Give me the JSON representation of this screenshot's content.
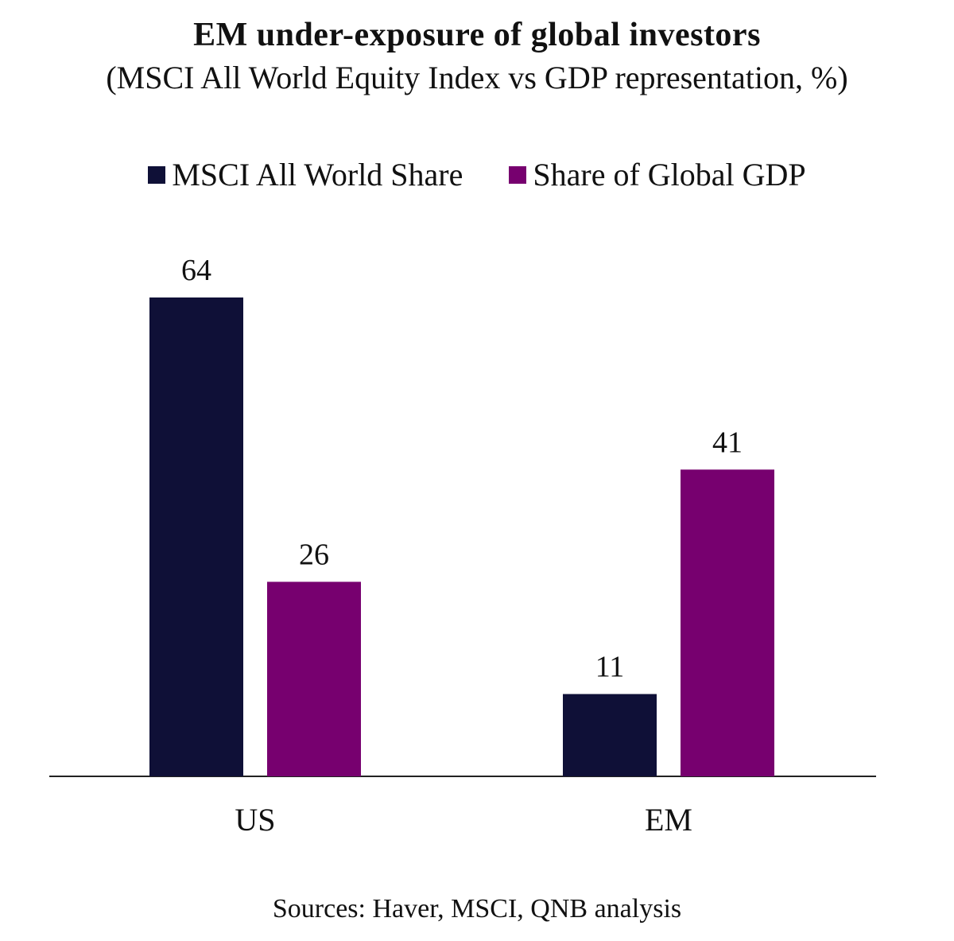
{
  "chart_data": {
    "type": "bar",
    "title": "EM under-exposure of global investors",
    "subtitle": "(MSCI All World Equity Index vs GDP representation, %)",
    "categories": [
      "US",
      "EM"
    ],
    "series": [
      {
        "name": "MSCI All World Share",
        "color": "#0f1037",
        "values": [
          64,
          11
        ]
      },
      {
        "name": "Share of Global GDP",
        "color": "#77006f",
        "values": [
          26,
          41
        ]
      }
    ],
    "xlabel": "",
    "ylabel": "",
    "ylim": [
      0,
      64
    ],
    "grid": false,
    "legend_position": "top",
    "source": "Sources: Haver, MSCI, QNB analysis"
  }
}
